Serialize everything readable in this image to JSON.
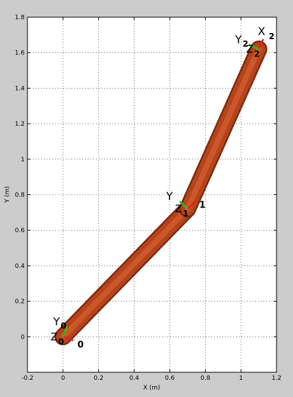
{
  "chart_data": {
    "type": "line",
    "title": "",
    "xlabel": "X (m)",
    "ylabel": "Y (m)",
    "xlim": [
      -0.2,
      1.2
    ],
    "ylim": [
      -0.2,
      1.8
    ],
    "grid": true,
    "x_ticks": [
      -0.2,
      0,
      0.2,
      0.4,
      0.6,
      0.8,
      1,
      1.2
    ],
    "x_tick_labels": [
      "-0.2",
      "0",
      "0.2",
      "0.4",
      "0.6",
      "0.8",
      "1",
      "1.2"
    ],
    "y_ticks": [
      0,
      0.2,
      0.4,
      0.6,
      0.8,
      1,
      1.2,
      1.4,
      1.6,
      1.8
    ],
    "y_tick_labels": [
      "0",
      "0.2",
      "0.4",
      "0.6",
      "0.8",
      "1",
      "1.2",
      "1.4",
      "1.6",
      "1.8"
    ],
    "series": [
      {
        "x": [
          0,
          0.7,
          1.1
        ],
        "y": [
          0,
          0.72,
          1.62
        ]
      }
    ],
    "frames": [
      {
        "x": 0,
        "y": 0,
        "x_axis_label": "0",
        "y_axis_label": "Y",
        "y_sub": "0",
        "z_label": "0"
      },
      {
        "x": 0.7,
        "y": 0.72,
        "x_axis_label": "1",
        "y_axis_label": "Y",
        "y_sub": "",
        "z_label": "1"
      },
      {
        "x": 1.1,
        "y": 1.62,
        "x_axis_label": "X",
        "x_sub": "2",
        "y_axis_label": "Y",
        "y_sub": "2",
        "z_label": "2"
      }
    ],
    "colors": {
      "link": "#b5441c",
      "link_highlight": "#e06a34",
      "link_shadow": "#7a2a0e",
      "x_axis": "#e02020",
      "y_axis": "#22c022",
      "background": "#cccccc",
      "plot_area": "#ffffff"
    }
  }
}
